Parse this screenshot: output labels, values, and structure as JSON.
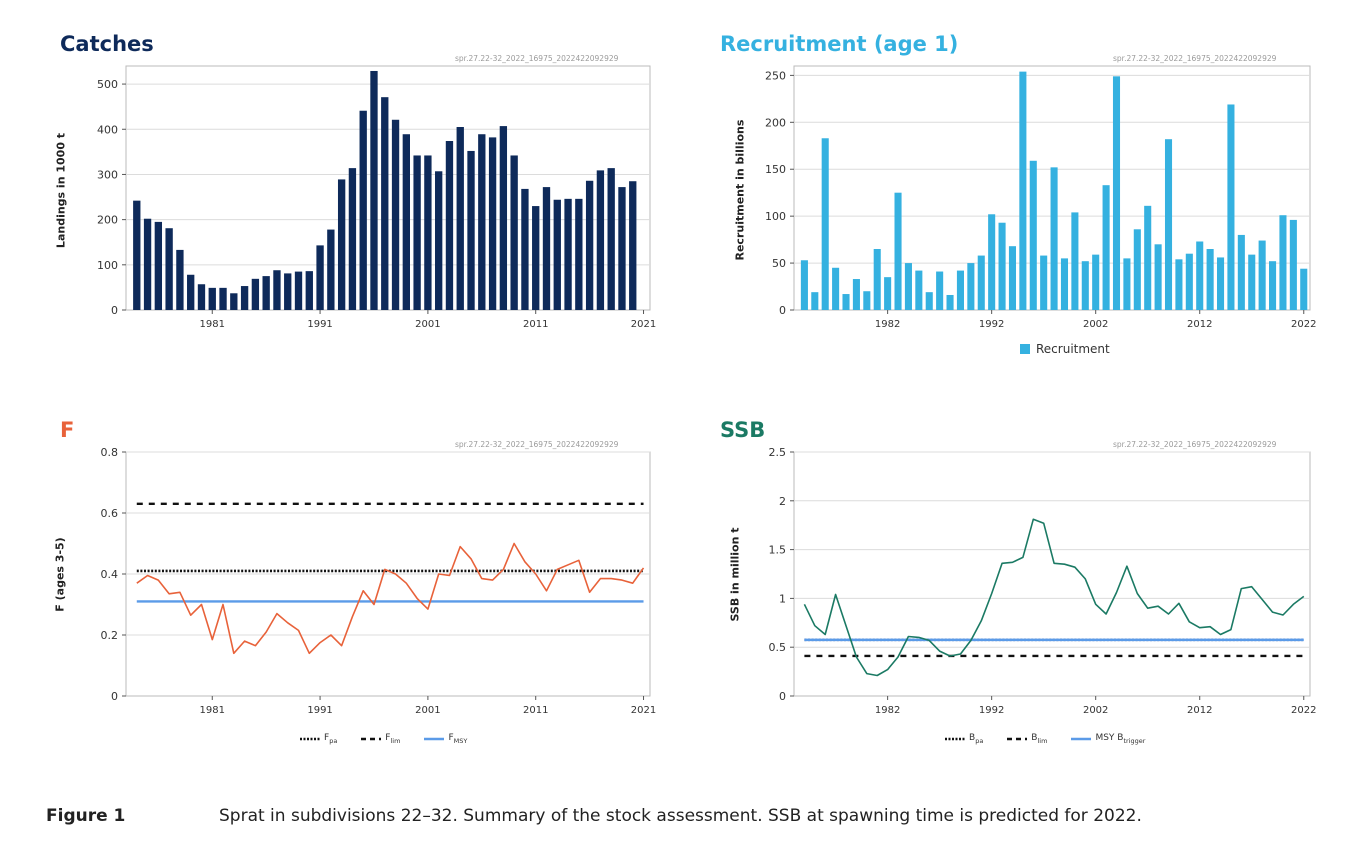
{
  "figure": {
    "label": "Figure 1",
    "caption": "Sprat in subdivisions 22–32. Summary of the stock assessment. SSB at spawning time is predicted for 2022."
  },
  "colors": {
    "catches": "#0e2a5a",
    "recruitment": "#35b1e0",
    "f_line": "#e8623a",
    "ssb_line": "#1b7a64",
    "msy_line": "#5b9be8",
    "ref_dark": "#111111",
    "bpa_line": "#1f3b8a"
  },
  "chart_data": [
    {
      "id": "catches",
      "type": "bar",
      "title": "Catches",
      "stamp": "spr.27.22-32_2022_16975_2022422092929",
      "ylabel": "Landings in 1000 t",
      "xlabel": "",
      "ylim": [
        0,
        540
      ],
      "yticks": [
        0,
        100,
        200,
        300,
        400,
        500
      ],
      "xticks": [
        1981,
        1991,
        2001,
        2011,
        2021
      ],
      "grid": true,
      "x": [
        1974,
        1975,
        1976,
        1977,
        1978,
        1979,
        1980,
        1981,
        1982,
        1983,
        1984,
        1985,
        1986,
        1987,
        1988,
        1989,
        1990,
        1991,
        1992,
        1993,
        1994,
        1995,
        1996,
        1997,
        1998,
        1999,
        2000,
        2001,
        2002,
        2003,
        2004,
        2005,
        2006,
        2007,
        2008,
        2009,
        2010,
        2011,
        2012,
        2013,
        2014,
        2015,
        2016,
        2017,
        2018,
        2019,
        2020,
        2021
      ],
      "values": [
        242,
        202,
        195,
        181,
        133,
        78,
        57,
        49,
        49,
        37,
        53,
        69,
        75,
        88,
        81,
        85,
        86,
        143,
        178,
        289,
        314,
        441,
        529,
        471,
        421,
        389,
        342,
        342,
        307,
        374,
        405,
        352,
        389,
        382,
        407,
        342,
        268,
        230,
        272,
        244,
        246,
        246,
        286,
        309,
        314,
        272,
        285,
        0
      ]
    },
    {
      "id": "recruitment",
      "type": "bar",
      "title": "Recruitment (age 1)",
      "stamp": "spr.27.22-32_2022_16975_2022422092929",
      "ylabel": "Recruitment in billions",
      "xlabel": "",
      "ylim": [
        0,
        260
      ],
      "yticks": [
        0,
        50,
        100,
        150,
        200,
        250
      ],
      "xticks": [
        1982,
        1992,
        2002,
        2012,
        2022
      ],
      "grid": true,
      "legend": [
        {
          "name": "Recruitment"
        }
      ],
      "legend_position": "bottom",
      "x": [
        1974,
        1975,
        1976,
        1977,
        1978,
        1979,
        1980,
        1981,
        1982,
        1983,
        1984,
        1985,
        1986,
        1987,
        1988,
        1989,
        1990,
        1991,
        1992,
        1993,
        1994,
        1995,
        1996,
        1997,
        1998,
        1999,
        2000,
        2001,
        2002,
        2003,
        2004,
        2005,
        2006,
        2007,
        2008,
        2009,
        2010,
        2011,
        2012,
        2013,
        2014,
        2015,
        2016,
        2017,
        2018,
        2019,
        2020,
        2021,
        2022
      ],
      "values": [
        53,
        19,
        183,
        45,
        17,
        33,
        20,
        65,
        35,
        125,
        50,
        42,
        19,
        41,
        16,
        42,
        50,
        58,
        102,
        93,
        68,
        254,
        159,
        58,
        152,
        55,
        104,
        52,
        59,
        133,
        249,
        55,
        86,
        111,
        70,
        182,
        54,
        60,
        73,
        65,
        56,
        219,
        80,
        59,
        74,
        52,
        101,
        96,
        44
      ]
    },
    {
      "id": "f",
      "type": "line",
      "title": "F",
      "stamp": "spr.27.22-32_2022_16975_2022422092929",
      "ylabel": "F (ages 3-5)",
      "xlabel": "",
      "ylim": [
        0,
        0.8
      ],
      "yticks": [
        0,
        0.2,
        0.4,
        0.6,
        0.8
      ],
      "xticks": [
        1981,
        1991,
        2001,
        2011,
        2021
      ],
      "grid": true,
      "legend_position": "bottom",
      "x": [
        1974,
        1975,
        1976,
        1977,
        1978,
        1979,
        1980,
        1981,
        1982,
        1983,
        1984,
        1985,
        1986,
        1987,
        1988,
        1989,
        1990,
        1991,
        1992,
        1993,
        1994,
        1995,
        1996,
        1997,
        1998,
        1999,
        2000,
        2001,
        2002,
        2003,
        2004,
        2005,
        2006,
        2007,
        2008,
        2009,
        2010,
        2011,
        2012,
        2013,
        2014,
        2015,
        2016,
        2017,
        2018,
        2019,
        2020,
        2021
      ],
      "series": [
        {
          "name": "F",
          "values": [
            0.37,
            0.395,
            0.38,
            0.335,
            0.34,
            0.265,
            0.3,
            0.185,
            0.3,
            0.14,
            0.18,
            0.165,
            0.21,
            0.27,
            0.24,
            0.215,
            0.14,
            0.175,
            0.2,
            0.165,
            0.26,
            0.345,
            0.3,
            0.415,
            0.4,
            0.37,
            0.32,
            0.285,
            0.4,
            0.395,
            0.49,
            0.45,
            0.385,
            0.38,
            0.415,
            0.5,
            0.44,
            0.4,
            0.345,
            0.415,
            0.43,
            0.445,
            0.34,
            0.385,
            0.385,
            0.38,
            0.37,
            0.42
          ]
        }
      ],
      "reference_lines": [
        {
          "name": "Fpa",
          "label_main": "F",
          "label_sub": "pa",
          "value": 0.41,
          "style": "dotted"
        },
        {
          "name": "Flim",
          "label_main": "F",
          "label_sub": "lim",
          "value": 0.63,
          "style": "dashed"
        },
        {
          "name": "FMSY",
          "label_main": "F",
          "label_sub": "MSY",
          "value": 0.31,
          "style": "solid"
        }
      ]
    },
    {
      "id": "ssb",
      "type": "line",
      "title": "SSB",
      "stamp": "spr.27.22-32_2022_16975_2022422092929",
      "ylabel": "SSB in million t",
      "xlabel": "",
      "ylim": [
        0,
        2.5
      ],
      "yticks": [
        0,
        0.5,
        1,
        1.5,
        2,
        2.5
      ],
      "ytick_labels": [
        "0",
        "0.5",
        "1",
        "1.5",
        "2",
        "2.5"
      ],
      "xticks": [
        1982,
        1992,
        2002,
        2012,
        2022
      ],
      "grid": true,
      "legend_position": "bottom",
      "x": [
        1974,
        1975,
        1976,
        1977,
        1978,
        1979,
        1980,
        1981,
        1982,
        1983,
        1984,
        1985,
        1986,
        1987,
        1988,
        1989,
        1990,
        1991,
        1992,
        1993,
        1994,
        1995,
        1996,
        1997,
        1998,
        1999,
        2000,
        2001,
        2002,
        2003,
        2004,
        2005,
        2006,
        2007,
        2008,
        2009,
        2010,
        2011,
        2012,
        2013,
        2014,
        2015,
        2016,
        2017,
        2018,
        2019,
        2020,
        2021,
        2022
      ],
      "series": [
        {
          "name": "SSB",
          "values": [
            0.94,
            0.72,
            0.63,
            1.04,
            0.72,
            0.4,
            0.23,
            0.21,
            0.27,
            0.4,
            0.61,
            0.6,
            0.57,
            0.46,
            0.41,
            0.43,
            0.57,
            0.77,
            1.05,
            1.36,
            1.37,
            1.42,
            1.81,
            1.77,
            1.36,
            1.35,
            1.32,
            1.2,
            0.94,
            0.84,
            1.06,
            1.33,
            1.05,
            0.9,
            0.92,
            0.84,
            0.95,
            0.76,
            0.7,
            0.71,
            0.63,
            0.68,
            1.1,
            1.12,
            0.99,
            0.86,
            0.83,
            0.94,
            1.02
          ]
        }
      ],
      "reference_lines": [
        {
          "name": "Bpa",
          "label_main": "B",
          "label_sub": "pa",
          "value": 0.575,
          "style": "dotted"
        },
        {
          "name": "Blim",
          "label_main": "B",
          "label_sub": "lim",
          "value": 0.41,
          "style": "dashed"
        },
        {
          "name": "MSY Btrigger",
          "label_main": "MSY B",
          "label_sub": "trigger",
          "value": 0.575,
          "style": "solid"
        }
      ]
    }
  ]
}
